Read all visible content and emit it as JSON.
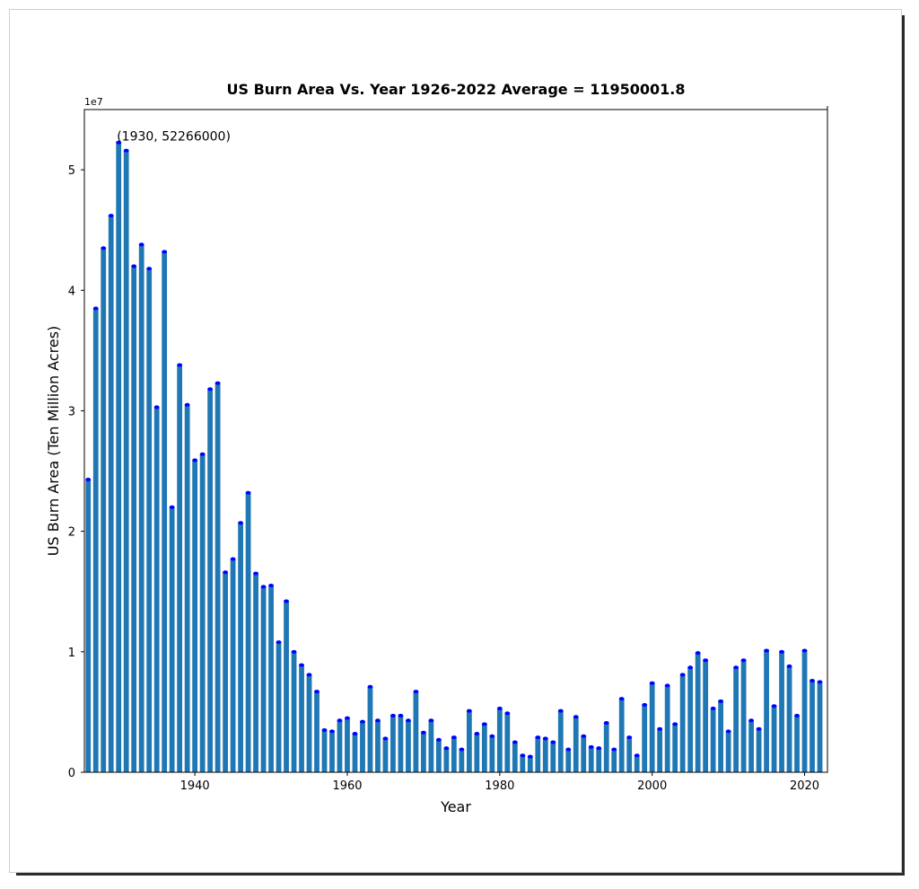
{
  "chart_data": {
    "type": "bar",
    "title": "US Burn Area Vs. Year 1926-2022 Average = 11950001.8",
    "xlabel": "Year",
    "ylabel": "US Burn Area (Ten Million Acres)",
    "y_offset_label": "1e7",
    "xlim": [
      1925.5,
      2023
    ],
    "ylim": [
      0,
      55000000
    ],
    "x_ticks": [
      1940,
      1960,
      1980,
      2000,
      2020
    ],
    "y_ticks": [
      0,
      1,
      2,
      3,
      4,
      5
    ],
    "bar_color": "#1f77b4",
    "marker_color": "#0000ff",
    "annotation": {
      "text": "(1930, 52266000)",
      "x": 1930,
      "y": 52266000
    },
    "x": [
      1926,
      1927,
      1928,
      1929,
      1930,
      1931,
      1932,
      1933,
      1934,
      1935,
      1936,
      1937,
      1938,
      1939,
      1940,
      1941,
      1942,
      1943,
      1944,
      1945,
      1946,
      1947,
      1948,
      1949,
      1950,
      1951,
      1952,
      1953,
      1954,
      1955,
      1956,
      1957,
      1958,
      1959,
      1960,
      1961,
      1962,
      1963,
      1964,
      1965,
      1966,
      1967,
      1968,
      1969,
      1970,
      1971,
      1972,
      1973,
      1974,
      1975,
      1976,
      1977,
      1978,
      1979,
      1980,
      1981,
      1982,
      1983,
      1984,
      1985,
      1986,
      1987,
      1988,
      1989,
      1990,
      1991,
      1992,
      1993,
      1994,
      1995,
      1996,
      1997,
      1998,
      1999,
      2000,
      2001,
      2002,
      2003,
      2004,
      2005,
      2006,
      2007,
      2008,
      2009,
      2010,
      2011,
      2012,
      2013,
      2014,
      2015,
      2016,
      2017,
      2018,
      2019,
      2020,
      2021,
      2022
    ],
    "values": [
      24300000,
      38500000,
      43500000,
      46200000,
      52266000,
      51600000,
      42000000,
      43800000,
      41800000,
      30300000,
      43200000,
      22000000,
      33800000,
      30500000,
      25900000,
      26400000,
      31800000,
      32300000,
      16600000,
      17700000,
      20700000,
      23200000,
      16500000,
      15400000,
      15500000,
      10800000,
      14200000,
      10000000,
      8900000,
      8100000,
      6700000,
      3500000,
      3400000,
      4300000,
      4500000,
      3200000,
      4200000,
      7100000,
      4300000,
      2800000,
      4700000,
      4700000,
      4300000,
      6700000,
      3300000,
      4300000,
      2700000,
      2000000,
      2900000,
      1900000,
      5100000,
      3200000,
      4000000,
      3000000,
      5300000,
      4900000,
      2500000,
      1400000,
      1300000,
      2900000,
      2800000,
      2500000,
      5100000,
      1900000,
      4600000,
      3000000,
      2100000,
      2000000,
      4100000,
      1900000,
      6100000,
      2900000,
      1400000,
      5600000,
      7400000,
      3600000,
      7200000,
      4000000,
      8100000,
      8700000,
      9900000,
      9300000,
      5300000,
      5900000,
      3400000,
      8700000,
      9300000,
      4300000,
      3600000,
      10100000,
      5500000,
      10000000,
      8800000,
      4700000,
      10100000,
      7600000,
      7500000
    ]
  }
}
